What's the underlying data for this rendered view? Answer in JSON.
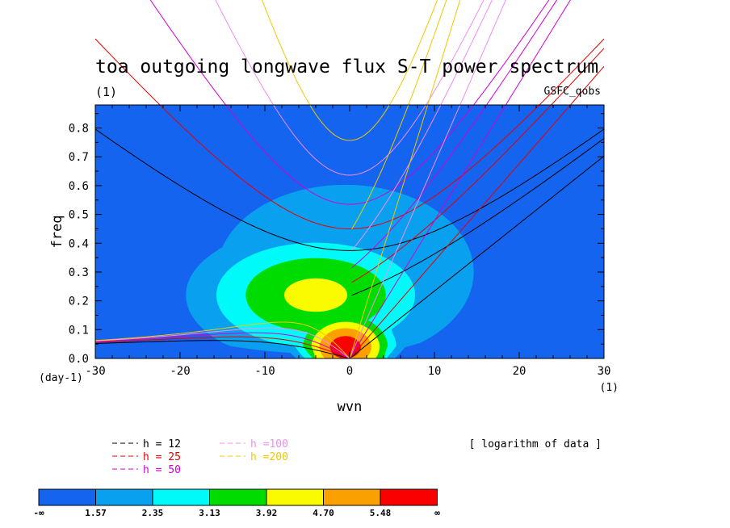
{
  "chart_data": {
    "type": "heatmap",
    "title": "toa outgoing longwave flux S-T power spectrum",
    "subtitle_left": "(1)",
    "subtitle_right": "GSFC_qobs",
    "xlabel": "wvn",
    "ylabel": "freq",
    "x_units": "(1)",
    "y_units": "(day-1)",
    "xlim": [
      -30,
      30
    ],
    "ylim": [
      0,
      0.88
    ],
    "xticks": [
      -30,
      -20,
      -10,
      0,
      10,
      20,
      30
    ],
    "yticks": [
      0.0,
      0.1,
      0.2,
      0.3,
      0.4,
      0.5,
      0.6,
      0.7,
      0.8
    ],
    "grid": false,
    "note": "[ logarithm of data ]",
    "colorbar": {
      "tick_labels": [
        "-∞",
        "1.57",
        "2.35",
        "3.13",
        "3.92",
        "4.70",
        "5.48",
        "∞"
      ],
      "colors": [
        "#1464F0",
        "#0AA0F0",
        "#00FAFA",
        "#00DC00",
        "#FAFA00",
        "#FAA000",
        "#FA0000"
      ]
    },
    "contour_levels": [
      1.57,
      2.35,
      3.13,
      3.92,
      4.7,
      5.48
    ],
    "dispersion_curves": {
      "legend": [
        {
          "label": "h = 12",
          "color": "#000000"
        },
        {
          "label": "h = 25",
          "color": "#E60000"
        },
        {
          "label": "h = 50",
          "color": "#D200D2"
        },
        {
          "label": "h =100",
          "color": "#F08CF0"
        },
        {
          "label": "h =200",
          "color": "#F0C800"
        }
      ],
      "equivalent_depths_m": [
        12,
        25,
        50,
        100,
        200
      ]
    }
  }
}
